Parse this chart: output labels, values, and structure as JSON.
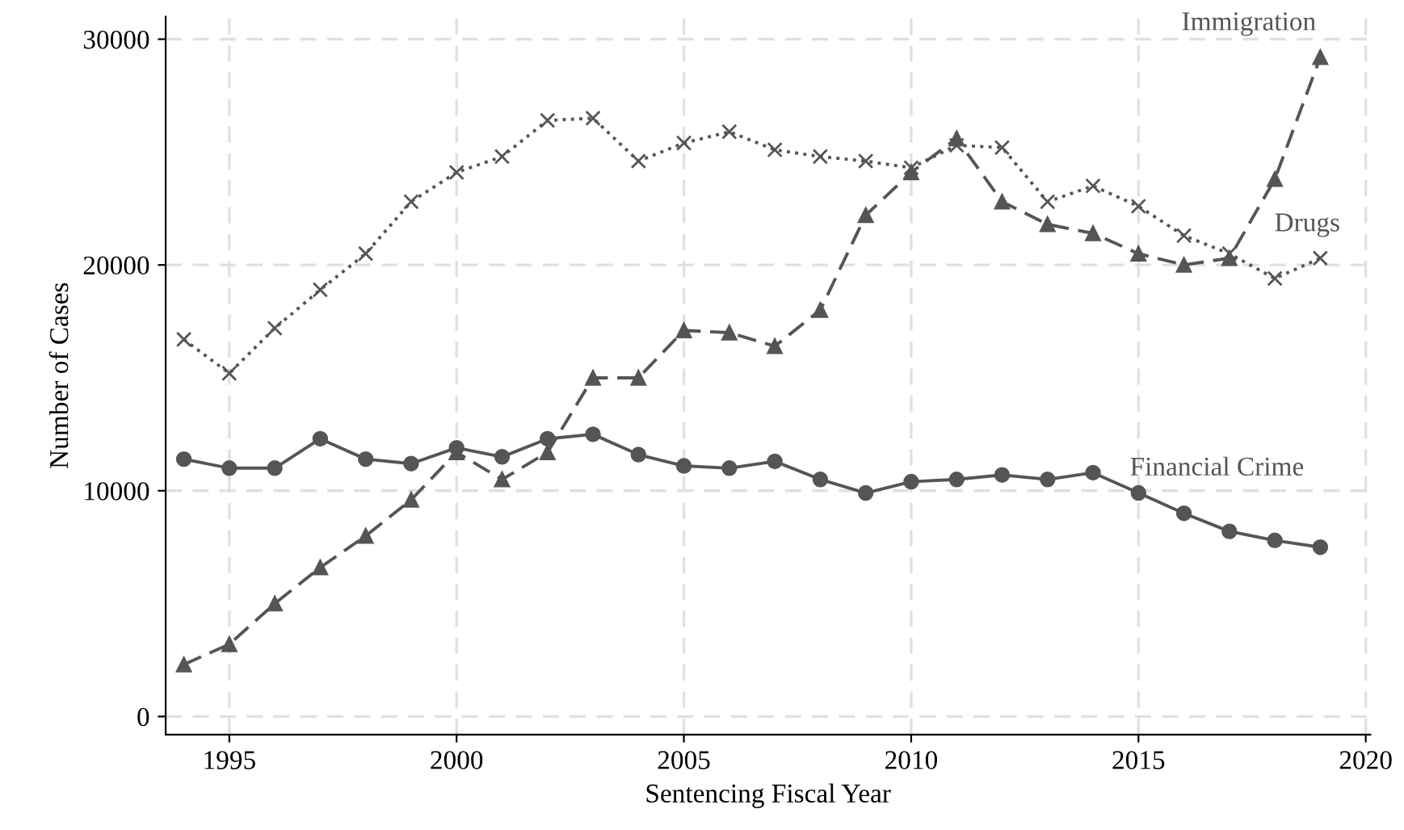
{
  "chart_data": {
    "type": "line",
    "xlabel": "Sentencing Fiscal Year",
    "ylabel": "Number of Cases",
    "x": [
      1994,
      1995,
      1996,
      1997,
      1998,
      1999,
      2000,
      2001,
      2002,
      2003,
      2004,
      2005,
      2006,
      2007,
      2008,
      2009,
      2010,
      2011,
      2012,
      2013,
      2014,
      2015,
      2016,
      2017,
      2018,
      2019
    ],
    "series": [
      {
        "name": "Drugs",
        "color": "#555555",
        "marker": "cross",
        "line_style": "dotted",
        "values": [
          16700,
          15200,
          17200,
          18900,
          20500,
          22800,
          24100,
          24800,
          26400,
          26500,
          24600,
          25400,
          25900,
          25100,
          24800,
          24600,
          24300,
          25300,
          25200,
          22800,
          23500,
          22600,
          21300,
          20500,
          19400,
          20300
        ]
      },
      {
        "name": "Immigration",
        "color": "#555555",
        "marker": "triangle",
        "line_style": "dashed",
        "values": [
          2300,
          3200,
          5000,
          6600,
          8000,
          9600,
          11700,
          10500,
          11700,
          15000,
          15000,
          17100,
          17000,
          16400,
          18000,
          22200,
          24100,
          25600,
          22800,
          21800,
          21400,
          20500,
          20000,
          20300,
          23800,
          29200
        ]
      },
      {
        "name": "Financial Crime",
        "color": "#555555",
        "marker": "circle",
        "line_style": "solid",
        "values": [
          11400,
          11000,
          11000,
          12300,
          11400,
          11200,
          11900,
          11500,
          12300,
          12500,
          11600,
          11100,
          11000,
          11300,
          10500,
          9900,
          10400,
          10500,
          10700,
          10500,
          10800,
          9900,
          9000,
          8200,
          7800,
          7500
        ]
      }
    ],
    "xlim": [
      1993.6,
      2020.1
    ],
    "ylim": [
      -800,
      31000
    ],
    "xticks": [
      1995,
      2000,
      2005,
      2010,
      2015,
      2020
    ],
    "yticks": [
      0,
      10000,
      20000,
      30000
    ],
    "grid": true,
    "legend": false
  }
}
